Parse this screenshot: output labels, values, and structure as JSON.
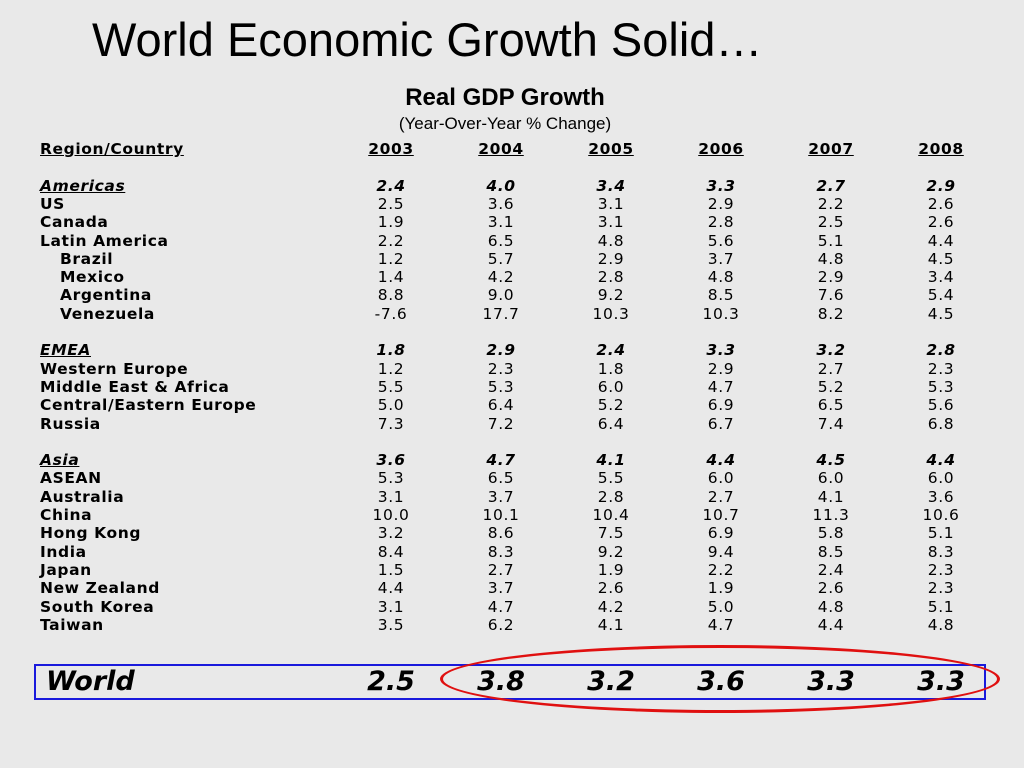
{
  "slide_title": "World Economic Growth Solid…",
  "table_title": "Real GDP Growth",
  "table_subtitle": "(Year-Over-Year % Change)",
  "header": {
    "label": "Region/Country",
    "years": [
      "2003",
      "2004",
      "2005",
      "2006",
      "2007",
      "2008"
    ]
  },
  "rows": [
    {
      "label": "Americas",
      "kind": "section",
      "values": [
        "2.4",
        "4.0",
        "3.4",
        "3.3",
        "2.7",
        "2.9"
      ]
    },
    {
      "label": "US",
      "kind": "row",
      "values": [
        "2.5",
        "3.6",
        "3.1",
        "2.9",
        "2.2",
        "2.6"
      ]
    },
    {
      "label": "Canada",
      "kind": "row",
      "values": [
        "1.9",
        "3.1",
        "3.1",
        "2.8",
        "2.5",
        "2.6"
      ]
    },
    {
      "label": "Latin America",
      "kind": "row",
      "values": [
        "2.2",
        "6.5",
        "4.8",
        "5.6",
        "5.1",
        "4.4"
      ]
    },
    {
      "label": "Brazil",
      "kind": "sub",
      "values": [
        "1.2",
        "5.7",
        "2.9",
        "3.7",
        "4.8",
        "4.5"
      ]
    },
    {
      "label": "Mexico",
      "kind": "sub",
      "values": [
        "1.4",
        "4.2",
        "2.8",
        "4.8",
        "2.9",
        "3.4"
      ]
    },
    {
      "label": "Argentina",
      "kind": "sub",
      "values": [
        "8.8",
        "9.0",
        "9.2",
        "8.5",
        "7.6",
        "5.4"
      ]
    },
    {
      "label": "Venezuela",
      "kind": "sub",
      "values": [
        "-7.6",
        "17.7",
        "10.3",
        "10.3",
        "8.2",
        "4.5"
      ]
    },
    {
      "label": "EMEA",
      "kind": "section",
      "values": [
        "1.8",
        "2.9",
        "2.4",
        "3.3",
        "3.2",
        "2.8"
      ]
    },
    {
      "label": "Western Europe",
      "kind": "row",
      "values": [
        "1.2",
        "2.3",
        "1.8",
        "2.9",
        "2.7",
        "2.3"
      ]
    },
    {
      "label": "Middle East & Africa",
      "kind": "row",
      "values": [
        "5.5",
        "5.3",
        "6.0",
        "4.7",
        "5.2",
        "5.3"
      ]
    },
    {
      "label": "Central/Eastern Europe",
      "kind": "row",
      "values": [
        "5.0",
        "6.4",
        "5.2",
        "6.9",
        "6.5",
        "5.6"
      ]
    },
    {
      "label": "Russia",
      "kind": "row",
      "values": [
        "7.3",
        "7.2",
        "6.4",
        "6.7",
        "7.4",
        "6.8"
      ]
    },
    {
      "label": "Asia",
      "kind": "section",
      "values": [
        "3.6",
        "4.7",
        "4.1",
        "4.4",
        "4.5",
        "4.4"
      ]
    },
    {
      "label": "ASEAN",
      "kind": "row",
      "values": [
        "5.3",
        "6.5",
        "5.5",
        "6.0",
        "6.0",
        "6.0"
      ]
    },
    {
      "label": "Australia",
      "kind": "row",
      "values": [
        "3.1",
        "3.7",
        "2.8",
        "2.7",
        "4.1",
        "3.6"
      ]
    },
    {
      "label": "China",
      "kind": "row",
      "values": [
        "10.0",
        "10.1",
        "10.4",
        "10.7",
        "11.3",
        "10.6"
      ]
    },
    {
      "label": "Hong Kong",
      "kind": "row",
      "values": [
        "3.2",
        "8.6",
        "7.5",
        "6.9",
        "5.8",
        "5.1"
      ]
    },
    {
      "label": "India",
      "kind": "row",
      "values": [
        "8.4",
        "8.3",
        "9.2",
        "9.4",
        "8.5",
        "8.3"
      ]
    },
    {
      "label": "Japan",
      "kind": "row",
      "values": [
        "1.5",
        "2.7",
        "1.9",
        "2.2",
        "2.4",
        "2.3"
      ]
    },
    {
      "label": "New Zealand",
      "kind": "row",
      "values": [
        "4.4",
        "3.7",
        "2.6",
        "1.9",
        "2.6",
        "2.3"
      ]
    },
    {
      "label": "South Korea",
      "kind": "row",
      "values": [
        "3.1",
        "4.7",
        "4.2",
        "5.0",
        "4.8",
        "5.1"
      ]
    },
    {
      "label": "Taiwan",
      "kind": "row",
      "values": [
        "3.5",
        "6.2",
        "4.1",
        "4.7",
        "4.4",
        "4.8"
      ]
    }
  ],
  "world": {
    "label": "World",
    "values": [
      "2.5",
      "3.8",
      "3.2",
      "3.6",
      "3.3",
      "3.3"
    ]
  },
  "colors": {
    "background": "#e9e9e9",
    "world_box_border": "#1a1adc",
    "highlight_oval": "#e01010"
  }
}
